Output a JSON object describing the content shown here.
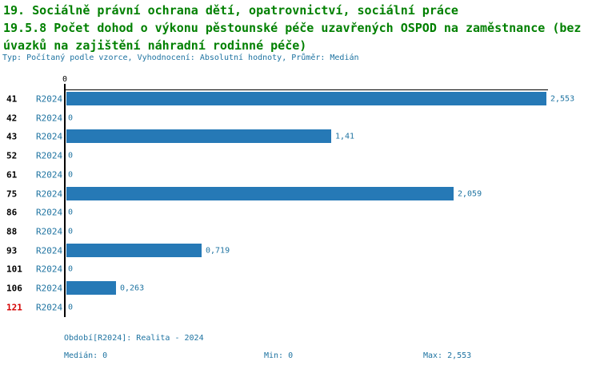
{
  "title": {
    "line1": "19. Sociálně právní ochrana dětí, opatrovnictví, sociální práce",
    "line2": "19.5.8 Počet dohod o výkonu pěstounské péče uzavřených OSPOD na zaměstnance (bez",
    "line3": "úvazků na zajištění náhradní rodinné péče)",
    "meta": "Typ: Počítaný podle vzorce, Vyhodnocení: Absolutní hodnoty, Průměr: Medián"
  },
  "colors": {
    "title_green": "#008000",
    "text_blue": "#1E73A1",
    "bar_blue": "#2679B6",
    "highlight_red": "#D40000",
    "axis_black": "#000000"
  },
  "chart_data": {
    "type": "bar",
    "orientation": "horizontal",
    "series_label": "R2024",
    "axis_tick_top": "0",
    "xlim": [
      0,
      2.553
    ],
    "grid": false,
    "categories": [
      "41",
      "42",
      "43",
      "52",
      "61",
      "75",
      "86",
      "88",
      "93",
      "101",
      "106",
      "121"
    ],
    "values": [
      2.553,
      0,
      1.41,
      0,
      0,
      2.059,
      0,
      0,
      0.719,
      0,
      0.263,
      0
    ],
    "value_labels": [
      "2,553",
      "0",
      "1,41",
      "0",
      "0",
      "2,059",
      "0",
      "0",
      "0,719",
      "0",
      "0,263",
      "0"
    ],
    "highlighted_categories": [
      "121"
    ]
  },
  "footer": {
    "period": "Období[R2024]: Realita - 2024",
    "median": "Medián: 0",
    "min": "Min: 0",
    "max": "Max: 2,553"
  }
}
